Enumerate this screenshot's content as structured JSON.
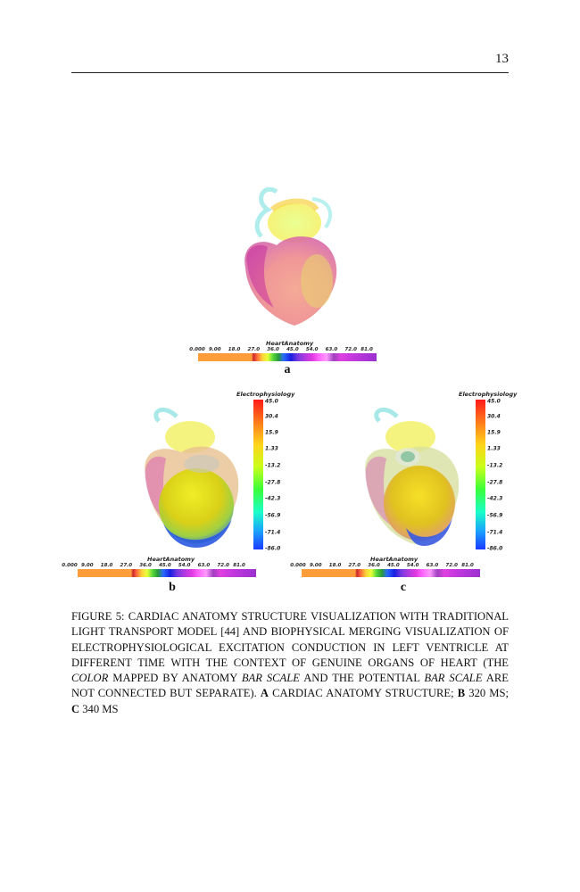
{
  "page": {
    "number": "13"
  },
  "figure": {
    "anatomy_colorbar": {
      "title": "HeartAnatomy",
      "ticks": [
        "0.000",
        "9.00",
        "18.0",
        "27.0",
        "36.0",
        "45.0",
        "54.0",
        "63.0",
        "72.0",
        "81.0"
      ]
    },
    "electro_colorbar": {
      "title": "Electrophysiology",
      "ticks": [
        "45.0",
        "30.4",
        "15.9",
        "1.33",
        "-13.2",
        "-27.8",
        "-42.3",
        "-56.9",
        "-71.4",
        "-86.0"
      ]
    },
    "panels": [
      {
        "label": "a"
      },
      {
        "label": "b"
      },
      {
        "label": "c"
      }
    ],
    "caption": {
      "prefix": "Figure 5:",
      "text_1": " Cardiac anatomy structure visualization with traditional light transport model [44] and biophysical merging visualization of electrophysiological excitation conduction in left ventricle at different time with the context of genuine organs of heart (the ",
      "em_1": "color",
      "text_2": " mapped by anatomy ",
      "em_2": "bar scale",
      "text_3": " and the potential ",
      "em_3": "bar scale",
      "text_4": " are not connected but separate). ",
      "bold_a": "A",
      "text_5": " cardiac anatomy structure; ",
      "bold_b": "B",
      "text_6": " 320 ms; ",
      "bold_c": "C",
      "text_7": " 340 ms"
    }
  }
}
